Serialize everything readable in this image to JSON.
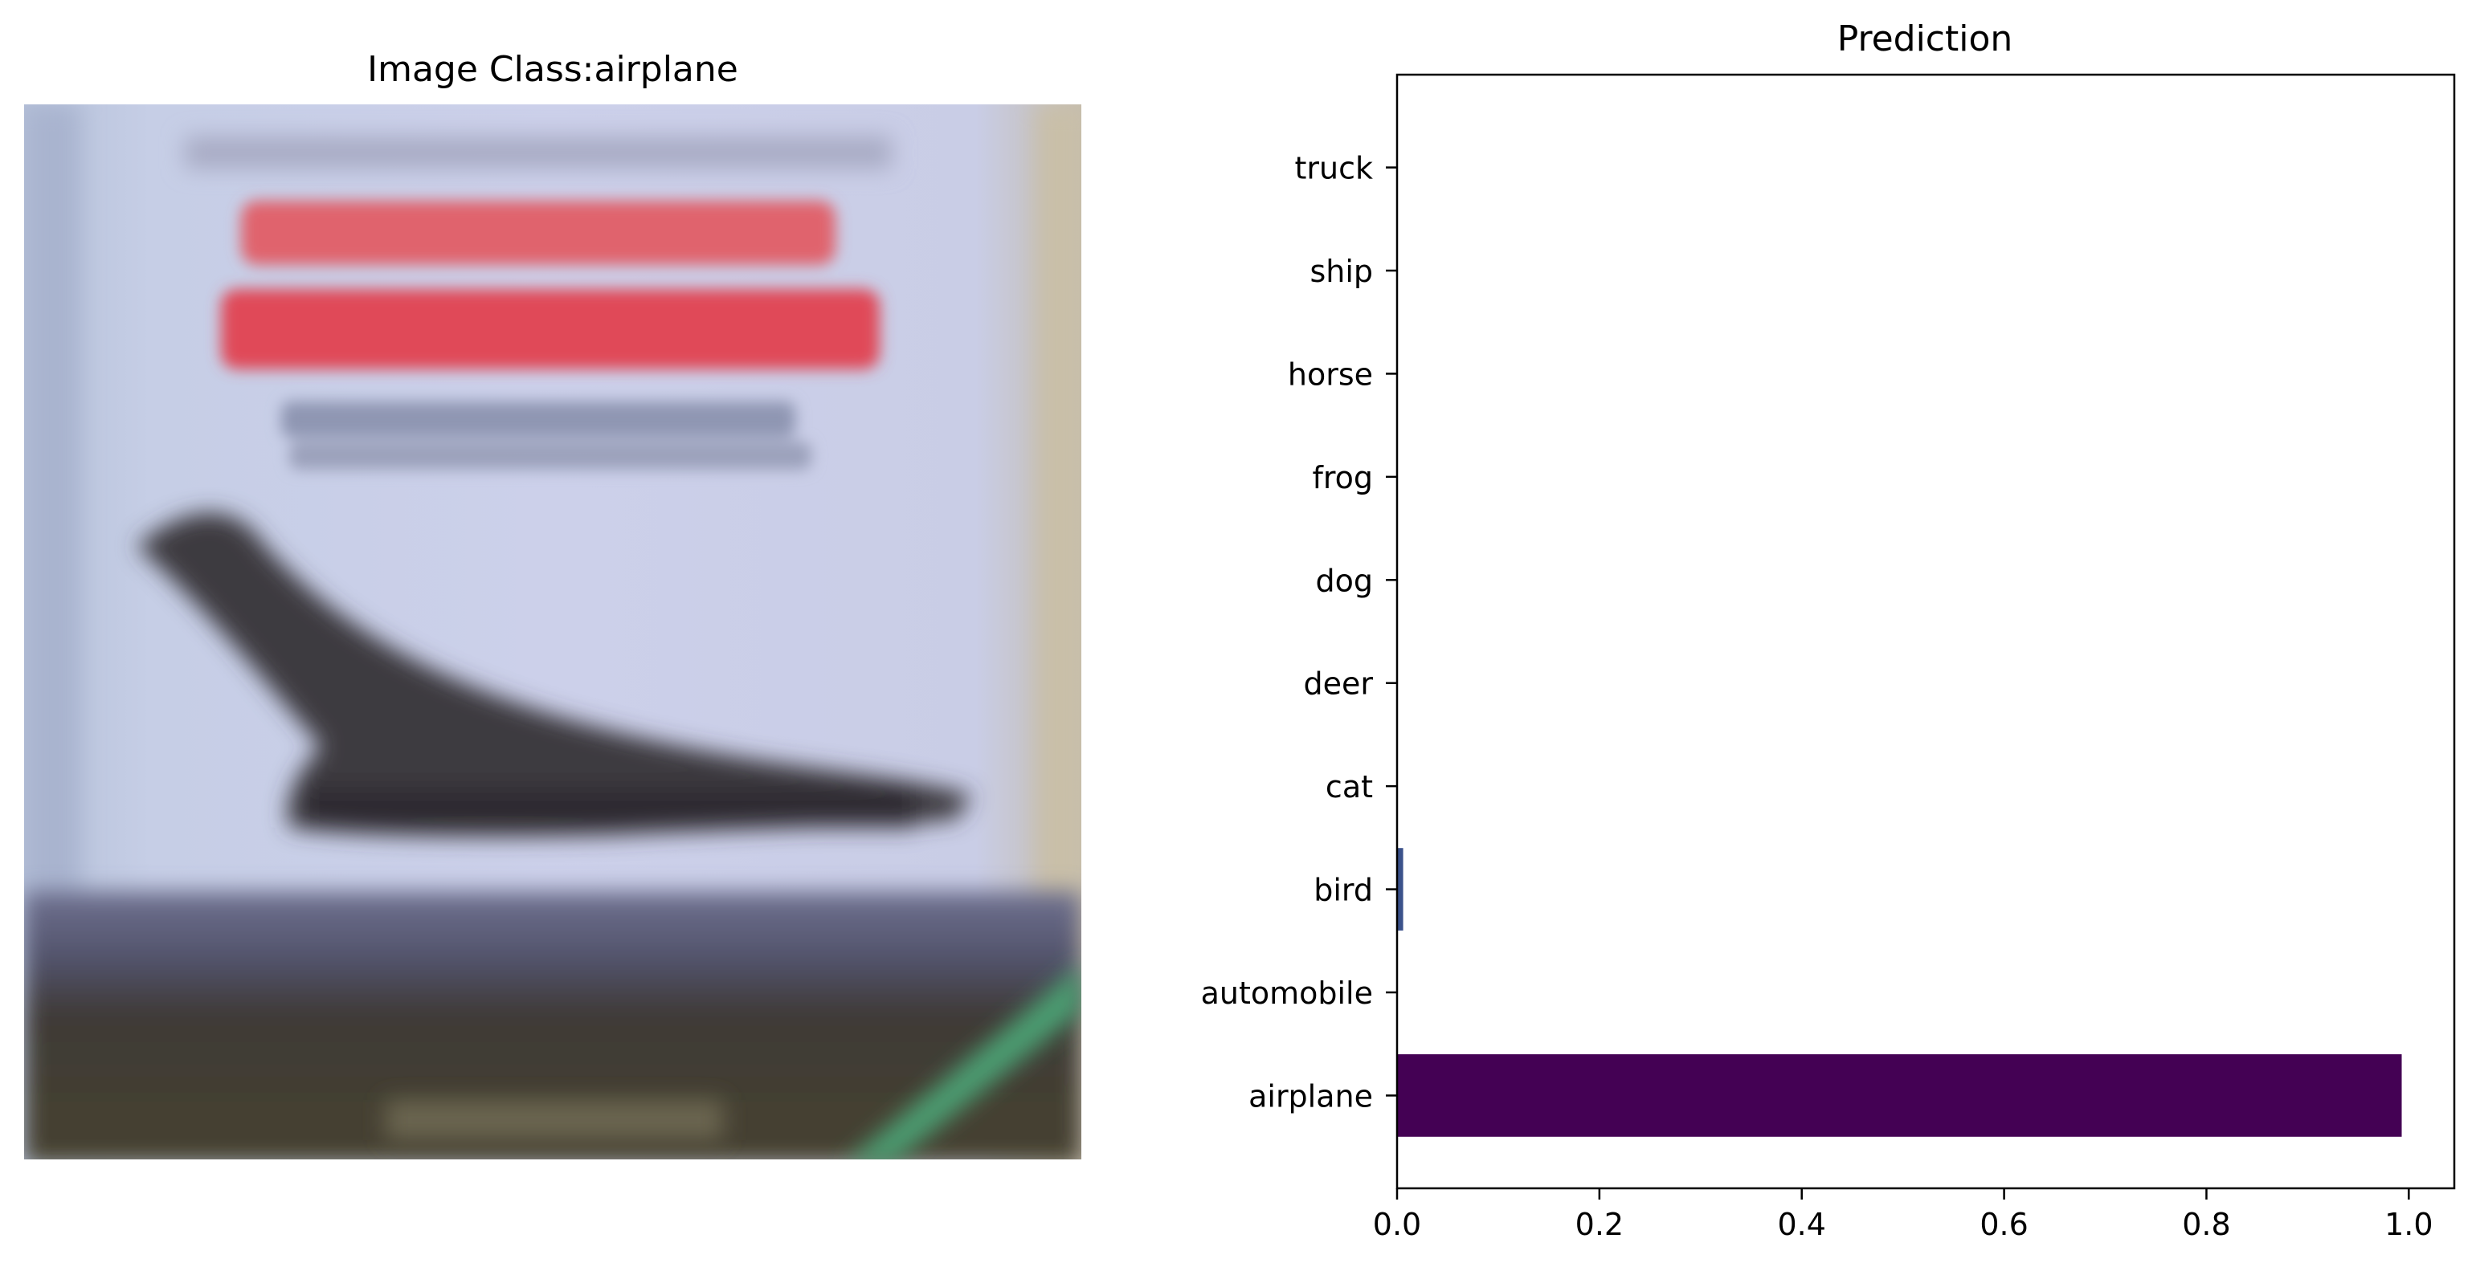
{
  "image_panel": {
    "title": "Image Class:airplane"
  },
  "chart_data": {
    "type": "bar",
    "orientation": "horizontal",
    "title": "Prediction",
    "xlabel": "",
    "ylabel": "",
    "categories": [
      "airplane",
      "automobile",
      "bird",
      "cat",
      "deer",
      "dog",
      "frog",
      "horse",
      "ship",
      "truck"
    ],
    "values": [
      0.993,
      0.0,
      0.006,
      0.0,
      0.0,
      0.0,
      0.0,
      0.0,
      0.0,
      0.0
    ],
    "xlim": [
      0.0,
      1.045
    ],
    "xticks": [
      0.0,
      0.2,
      0.4,
      0.6,
      0.8,
      1.0
    ],
    "xtick_labels": [
      "0.0",
      "0.2",
      "0.4",
      "0.6",
      "0.8",
      "1.0"
    ],
    "grid": false,
    "colormap": "viridis",
    "colors": {
      "airplane": "#440154",
      "bird": "#3b528b"
    }
  }
}
